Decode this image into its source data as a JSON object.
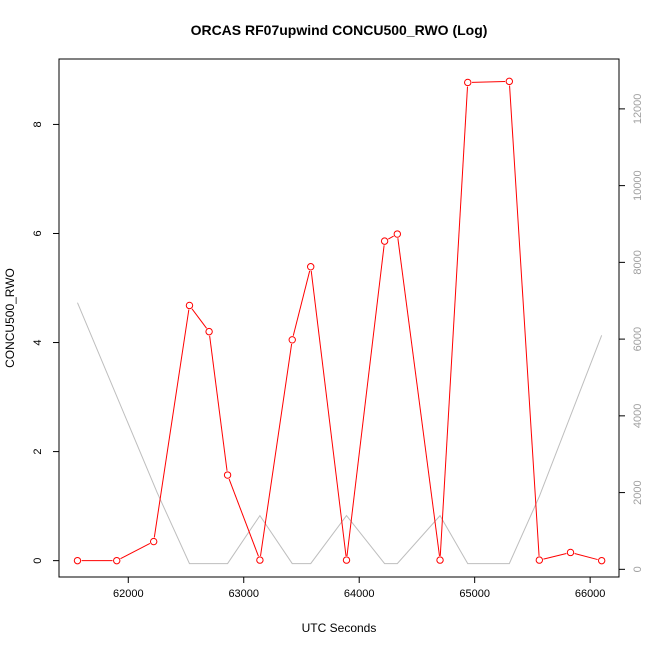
{
  "chart_data": {
    "type": "line",
    "title": "ORCAS RF07upwind CONCU500_RWO (Log)",
    "xlabel": "UTC Seconds",
    "ylabel": "CONCU500_RWO",
    "xlim": [
      61400,
      66250
    ],
    "ylim": [
      -0.3,
      9.2
    ],
    "y2lim": [
      -200,
      13300
    ],
    "x_ticks": [
      62000,
      63000,
      64000,
      65000,
      66000
    ],
    "y_ticks": [
      0,
      2,
      4,
      6,
      8
    ],
    "y2_ticks": [
      0,
      2000,
      4000,
      6000,
      8000,
      10000,
      12000
    ],
    "grid": false,
    "colors": {
      "primary": "#ff0000",
      "secondary": "#bebebe"
    },
    "series": [
      {
        "axis": "left",
        "markers": "open-circle",
        "x": [
          61560,
          61900,
          62220,
          62530,
          62700,
          62860,
          63140,
          63420,
          63580,
          63890,
          64220,
          64330,
          64700,
          64940,
          65300,
          65560,
          65830,
          66100
        ],
        "values": [
          0.0,
          0.0,
          0.35,
          4.68,
          4.2,
          1.57,
          0.01,
          4.05,
          5.39,
          0.01,
          5.86,
          5.99,
          0.01,
          8.77,
          8.79,
          0.01,
          0.15,
          0.0
        ]
      },
      {
        "axis": "right",
        "x": [
          61560,
          62250,
          62530,
          62860,
          63140,
          63420,
          63580,
          63890,
          64220,
          64330,
          64700,
          64940,
          65300,
          65560,
          66100
        ],
        "values": [
          6950,
          2000,
          150,
          150,
          1400,
          150,
          150,
          1400,
          150,
          150,
          1400,
          150,
          150,
          1900,
          6100
        ]
      }
    ]
  }
}
